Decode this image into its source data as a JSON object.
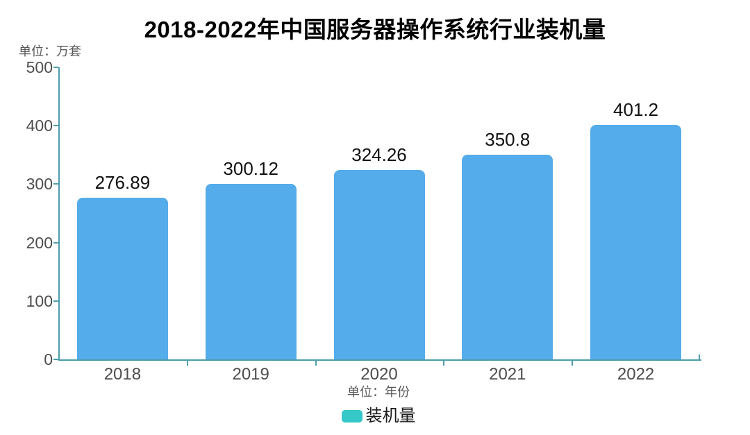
{
  "title": "2018-2022年中国服务器操作系统行业装机量",
  "y_unit_label": "单位：万套",
  "x_unit_label": "单位：年份",
  "legend": {
    "label": "装机量",
    "marker_color": "#35C8C9"
  },
  "colors": {
    "bar": "#55ACEA",
    "axis": "#4C9DAB",
    "tick_text": "#4D4D4D",
    "value_label": "#111111",
    "unit_text": "#595959"
  },
  "chart_data": {
    "type": "bar",
    "title": "2018-2022年中国服务器操作系统行业装机量",
    "categories": [
      "2018",
      "2019",
      "2020",
      "2021",
      "2022"
    ],
    "series": [
      {
        "name": "装机量",
        "values": [
          276.89,
          300.12,
          324.26,
          350.8,
          401.2
        ]
      }
    ],
    "value_labels": [
      "276.89",
      "300.12",
      "324.26",
      "350.8",
      "401.2"
    ],
    "xlabel": "单位：年份",
    "ylabel": "单位：万套",
    "ylim": [
      0,
      500
    ],
    "yticks": [
      0,
      100,
      200,
      300,
      400,
      500
    ],
    "grid": false,
    "legend_position": "bottom"
  }
}
